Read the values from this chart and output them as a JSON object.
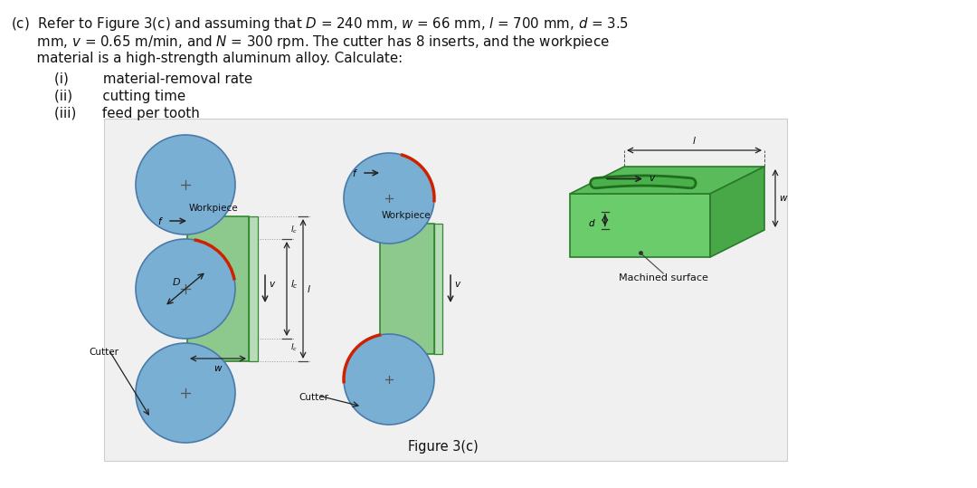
{
  "bg_color": "#ffffff",
  "diagram_bg": "#f2f2f2",
  "workpiece_color": "#8dc88d",
  "workpiece_light": "#b8dbb8",
  "workpiece_dark": "#6aaa6a",
  "cutter_color": "#7aafd4",
  "cutter_edge": "#4a7aaa",
  "red_arc": "#cc2200",
  "arrow_color": "#222222",
  "text_color": "#111111",
  "green_top": "#5ab85a",
  "green_right": "#3a983a",
  "green_front": "#6acc6a",
  "green_groove": "#2a7a2a",
  "line_text": [
    "(c)  Refer to Figure 3(c) and assuming that $D$ = 240 mm, $w$ = 66 mm, $l$ = 700 mm, $d$ = 3.5",
    "      mm, $v$ = 0.65 m/min, and $N$ = 300 rpm. The cutter has 8 inserts, and the workpiece",
    "      material is a high-strength aluminum alloy. Calculate:"
  ],
  "item_i": "(i)        material-removal rate",
  "item_ii": "(ii)       cutting time",
  "item_iii": "(iii)      feed per tooth",
  "caption": "Figure 3(c)"
}
